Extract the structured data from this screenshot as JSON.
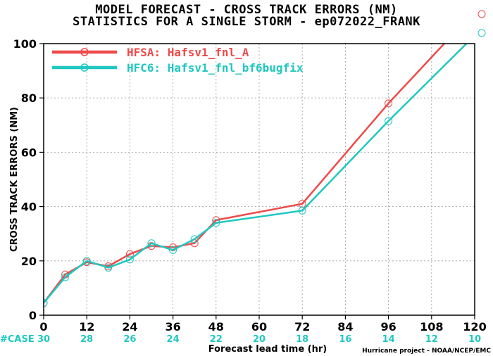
{
  "header": {
    "line1": "MODEL FORECAST - CROSS TRACK ERRORS (NM)",
    "line2": "STATISTICS FOR A SINGLE STORM - ep072022_FRANK"
  },
  "colors": {
    "hfsa": "#ee4a4a",
    "hfc6": "#1fc8c0",
    "grid": "#9a9a9a",
    "axis": "#000000"
  },
  "chart_data": {
    "type": "line",
    "ylabel": "CROSS TRACK ERRORS (NM)",
    "xlabel": "Forecast lead time (hr)",
    "xlim": [
      0,
      120
    ],
    "ylim": [
      0,
      100
    ],
    "x_ticks": [
      0,
      12,
      24,
      36,
      48,
      60,
      72,
      84,
      96,
      108,
      120
    ],
    "y_ticks": [
      0,
      20,
      40,
      60,
      80,
      100
    ],
    "grid": true,
    "legend_position": "top-left",
    "series": [
      {
        "name": "HFSA: Hafsv1_fnl_A",
        "color_key": "hfsa",
        "x": [
          0,
          6,
          12,
          18,
          24,
          30,
          36,
          42,
          48,
          72,
          96,
          120
        ],
        "y": [
          4.5,
          15,
          19.5,
          18,
          22.5,
          25.5,
          25,
          26.5,
          35,
          41,
          78,
          112
        ]
      },
      {
        "name": "HFC6: Hafsv1_fnl_bf6bugfix",
        "color_key": "hfc6",
        "x": [
          0,
          6,
          12,
          18,
          24,
          30,
          36,
          42,
          48,
          72,
          96,
          120
        ],
        "y": [
          4.5,
          14,
          20,
          17.5,
          20.5,
          26.5,
          24,
          28,
          34,
          38.5,
          71.5,
          103
        ]
      }
    ],
    "case_label": "#CASE",
    "case_counts": {
      "x": [
        0,
        12,
        24,
        36,
        48,
        60,
        72,
        84,
        96,
        108,
        120
      ],
      "values": [
        "30",
        "28",
        "26",
        "24",
        "22",
        "20",
        "18",
        "16",
        "14",
        "12",
        "10"
      ]
    },
    "credit": "Hurricane project - NOAA/NCEP/EMC"
  }
}
